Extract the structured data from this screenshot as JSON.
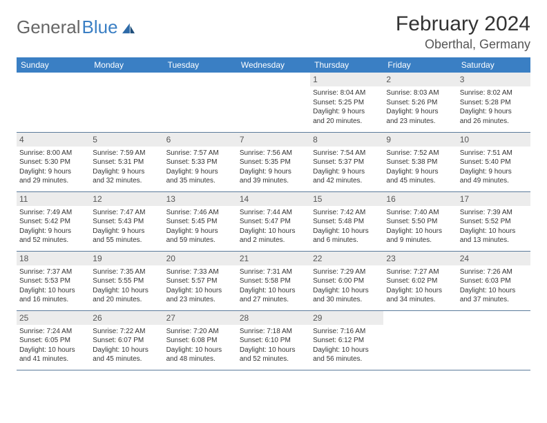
{
  "brand": {
    "part1": "General",
    "part2": "Blue"
  },
  "title": "February 2024",
  "location": "Oberthal, Germany",
  "colors": {
    "header_bg": "#3a7fc4",
    "header_text": "#ffffff",
    "cell_border": "#5a7a9a",
    "daynum_bg": "#ececec",
    "text": "#333333"
  },
  "weekdays": [
    "Sunday",
    "Monday",
    "Tuesday",
    "Wednesday",
    "Thursday",
    "Friday",
    "Saturday"
  ],
  "weeks": [
    [
      null,
      null,
      null,
      null,
      {
        "d": "1",
        "sr": "Sunrise: 8:04 AM",
        "ss": "Sunset: 5:25 PM",
        "dl1": "Daylight: 9 hours",
        "dl2": "and 20 minutes."
      },
      {
        "d": "2",
        "sr": "Sunrise: 8:03 AM",
        "ss": "Sunset: 5:26 PM",
        "dl1": "Daylight: 9 hours",
        "dl2": "and 23 minutes."
      },
      {
        "d": "3",
        "sr": "Sunrise: 8:02 AM",
        "ss": "Sunset: 5:28 PM",
        "dl1": "Daylight: 9 hours",
        "dl2": "and 26 minutes."
      }
    ],
    [
      {
        "d": "4",
        "sr": "Sunrise: 8:00 AM",
        "ss": "Sunset: 5:30 PM",
        "dl1": "Daylight: 9 hours",
        "dl2": "and 29 minutes."
      },
      {
        "d": "5",
        "sr": "Sunrise: 7:59 AM",
        "ss": "Sunset: 5:31 PM",
        "dl1": "Daylight: 9 hours",
        "dl2": "and 32 minutes."
      },
      {
        "d": "6",
        "sr": "Sunrise: 7:57 AM",
        "ss": "Sunset: 5:33 PM",
        "dl1": "Daylight: 9 hours",
        "dl2": "and 35 minutes."
      },
      {
        "d": "7",
        "sr": "Sunrise: 7:56 AM",
        "ss": "Sunset: 5:35 PM",
        "dl1": "Daylight: 9 hours",
        "dl2": "and 39 minutes."
      },
      {
        "d": "8",
        "sr": "Sunrise: 7:54 AM",
        "ss": "Sunset: 5:37 PM",
        "dl1": "Daylight: 9 hours",
        "dl2": "and 42 minutes."
      },
      {
        "d": "9",
        "sr": "Sunrise: 7:52 AM",
        "ss": "Sunset: 5:38 PM",
        "dl1": "Daylight: 9 hours",
        "dl2": "and 45 minutes."
      },
      {
        "d": "10",
        "sr": "Sunrise: 7:51 AM",
        "ss": "Sunset: 5:40 PM",
        "dl1": "Daylight: 9 hours",
        "dl2": "and 49 minutes."
      }
    ],
    [
      {
        "d": "11",
        "sr": "Sunrise: 7:49 AM",
        "ss": "Sunset: 5:42 PM",
        "dl1": "Daylight: 9 hours",
        "dl2": "and 52 minutes."
      },
      {
        "d": "12",
        "sr": "Sunrise: 7:47 AM",
        "ss": "Sunset: 5:43 PM",
        "dl1": "Daylight: 9 hours",
        "dl2": "and 55 minutes."
      },
      {
        "d": "13",
        "sr": "Sunrise: 7:46 AM",
        "ss": "Sunset: 5:45 PM",
        "dl1": "Daylight: 9 hours",
        "dl2": "and 59 minutes."
      },
      {
        "d": "14",
        "sr": "Sunrise: 7:44 AM",
        "ss": "Sunset: 5:47 PM",
        "dl1": "Daylight: 10 hours",
        "dl2": "and 2 minutes."
      },
      {
        "d": "15",
        "sr": "Sunrise: 7:42 AM",
        "ss": "Sunset: 5:48 PM",
        "dl1": "Daylight: 10 hours",
        "dl2": "and 6 minutes."
      },
      {
        "d": "16",
        "sr": "Sunrise: 7:40 AM",
        "ss": "Sunset: 5:50 PM",
        "dl1": "Daylight: 10 hours",
        "dl2": "and 9 minutes."
      },
      {
        "d": "17",
        "sr": "Sunrise: 7:39 AM",
        "ss": "Sunset: 5:52 PM",
        "dl1": "Daylight: 10 hours",
        "dl2": "and 13 minutes."
      }
    ],
    [
      {
        "d": "18",
        "sr": "Sunrise: 7:37 AM",
        "ss": "Sunset: 5:53 PM",
        "dl1": "Daylight: 10 hours",
        "dl2": "and 16 minutes."
      },
      {
        "d": "19",
        "sr": "Sunrise: 7:35 AM",
        "ss": "Sunset: 5:55 PM",
        "dl1": "Daylight: 10 hours",
        "dl2": "and 20 minutes."
      },
      {
        "d": "20",
        "sr": "Sunrise: 7:33 AM",
        "ss": "Sunset: 5:57 PM",
        "dl1": "Daylight: 10 hours",
        "dl2": "and 23 minutes."
      },
      {
        "d": "21",
        "sr": "Sunrise: 7:31 AM",
        "ss": "Sunset: 5:58 PM",
        "dl1": "Daylight: 10 hours",
        "dl2": "and 27 minutes."
      },
      {
        "d": "22",
        "sr": "Sunrise: 7:29 AM",
        "ss": "Sunset: 6:00 PM",
        "dl1": "Daylight: 10 hours",
        "dl2": "and 30 minutes."
      },
      {
        "d": "23",
        "sr": "Sunrise: 7:27 AM",
        "ss": "Sunset: 6:02 PM",
        "dl1": "Daylight: 10 hours",
        "dl2": "and 34 minutes."
      },
      {
        "d": "24",
        "sr": "Sunrise: 7:26 AM",
        "ss": "Sunset: 6:03 PM",
        "dl1": "Daylight: 10 hours",
        "dl2": "and 37 minutes."
      }
    ],
    [
      {
        "d": "25",
        "sr": "Sunrise: 7:24 AM",
        "ss": "Sunset: 6:05 PM",
        "dl1": "Daylight: 10 hours",
        "dl2": "and 41 minutes."
      },
      {
        "d": "26",
        "sr": "Sunrise: 7:22 AM",
        "ss": "Sunset: 6:07 PM",
        "dl1": "Daylight: 10 hours",
        "dl2": "and 45 minutes."
      },
      {
        "d": "27",
        "sr": "Sunrise: 7:20 AM",
        "ss": "Sunset: 6:08 PM",
        "dl1": "Daylight: 10 hours",
        "dl2": "and 48 minutes."
      },
      {
        "d": "28",
        "sr": "Sunrise: 7:18 AM",
        "ss": "Sunset: 6:10 PM",
        "dl1": "Daylight: 10 hours",
        "dl2": "and 52 minutes."
      },
      {
        "d": "29",
        "sr": "Sunrise: 7:16 AM",
        "ss": "Sunset: 6:12 PM",
        "dl1": "Daylight: 10 hours",
        "dl2": "and 56 minutes."
      },
      null,
      null
    ]
  ]
}
